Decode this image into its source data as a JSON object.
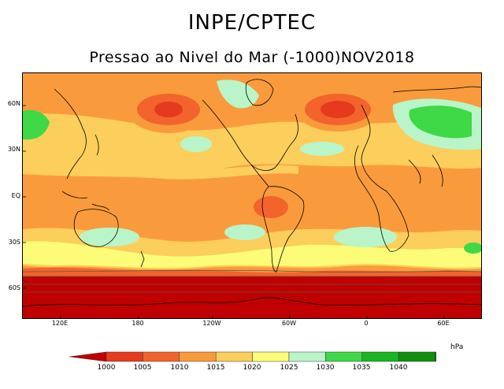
{
  "header": {
    "title": "INPE/CPTEC",
    "subtitle": "Pressao ao Nivel do Mar (-1000)NOV2018"
  },
  "map": {
    "lat_ticks": [
      "60N",
      "30N",
      "EQ",
      "30S",
      "60S"
    ],
    "lon_ticks": [
      "120E",
      "180",
      "120W",
      "60W",
      "0",
      "60E"
    ]
  },
  "legend": {
    "unit": "hPa",
    "labels": [
      "1000",
      "1005",
      "1010",
      "1015",
      "1020",
      "1025",
      "1030",
      "1035",
      "1040"
    ],
    "colors": [
      "#c00000",
      "#e63a1e",
      "#f2642c",
      "#f99b3c",
      "#fcce5c",
      "#fcfc78",
      "#b9f5c9",
      "#3fd846",
      "#19b522",
      "#108f10",
      "#0a6e0a"
    ]
  },
  "colors": {
    "land_outline": "#000000",
    "frame": "#000000"
  }
}
